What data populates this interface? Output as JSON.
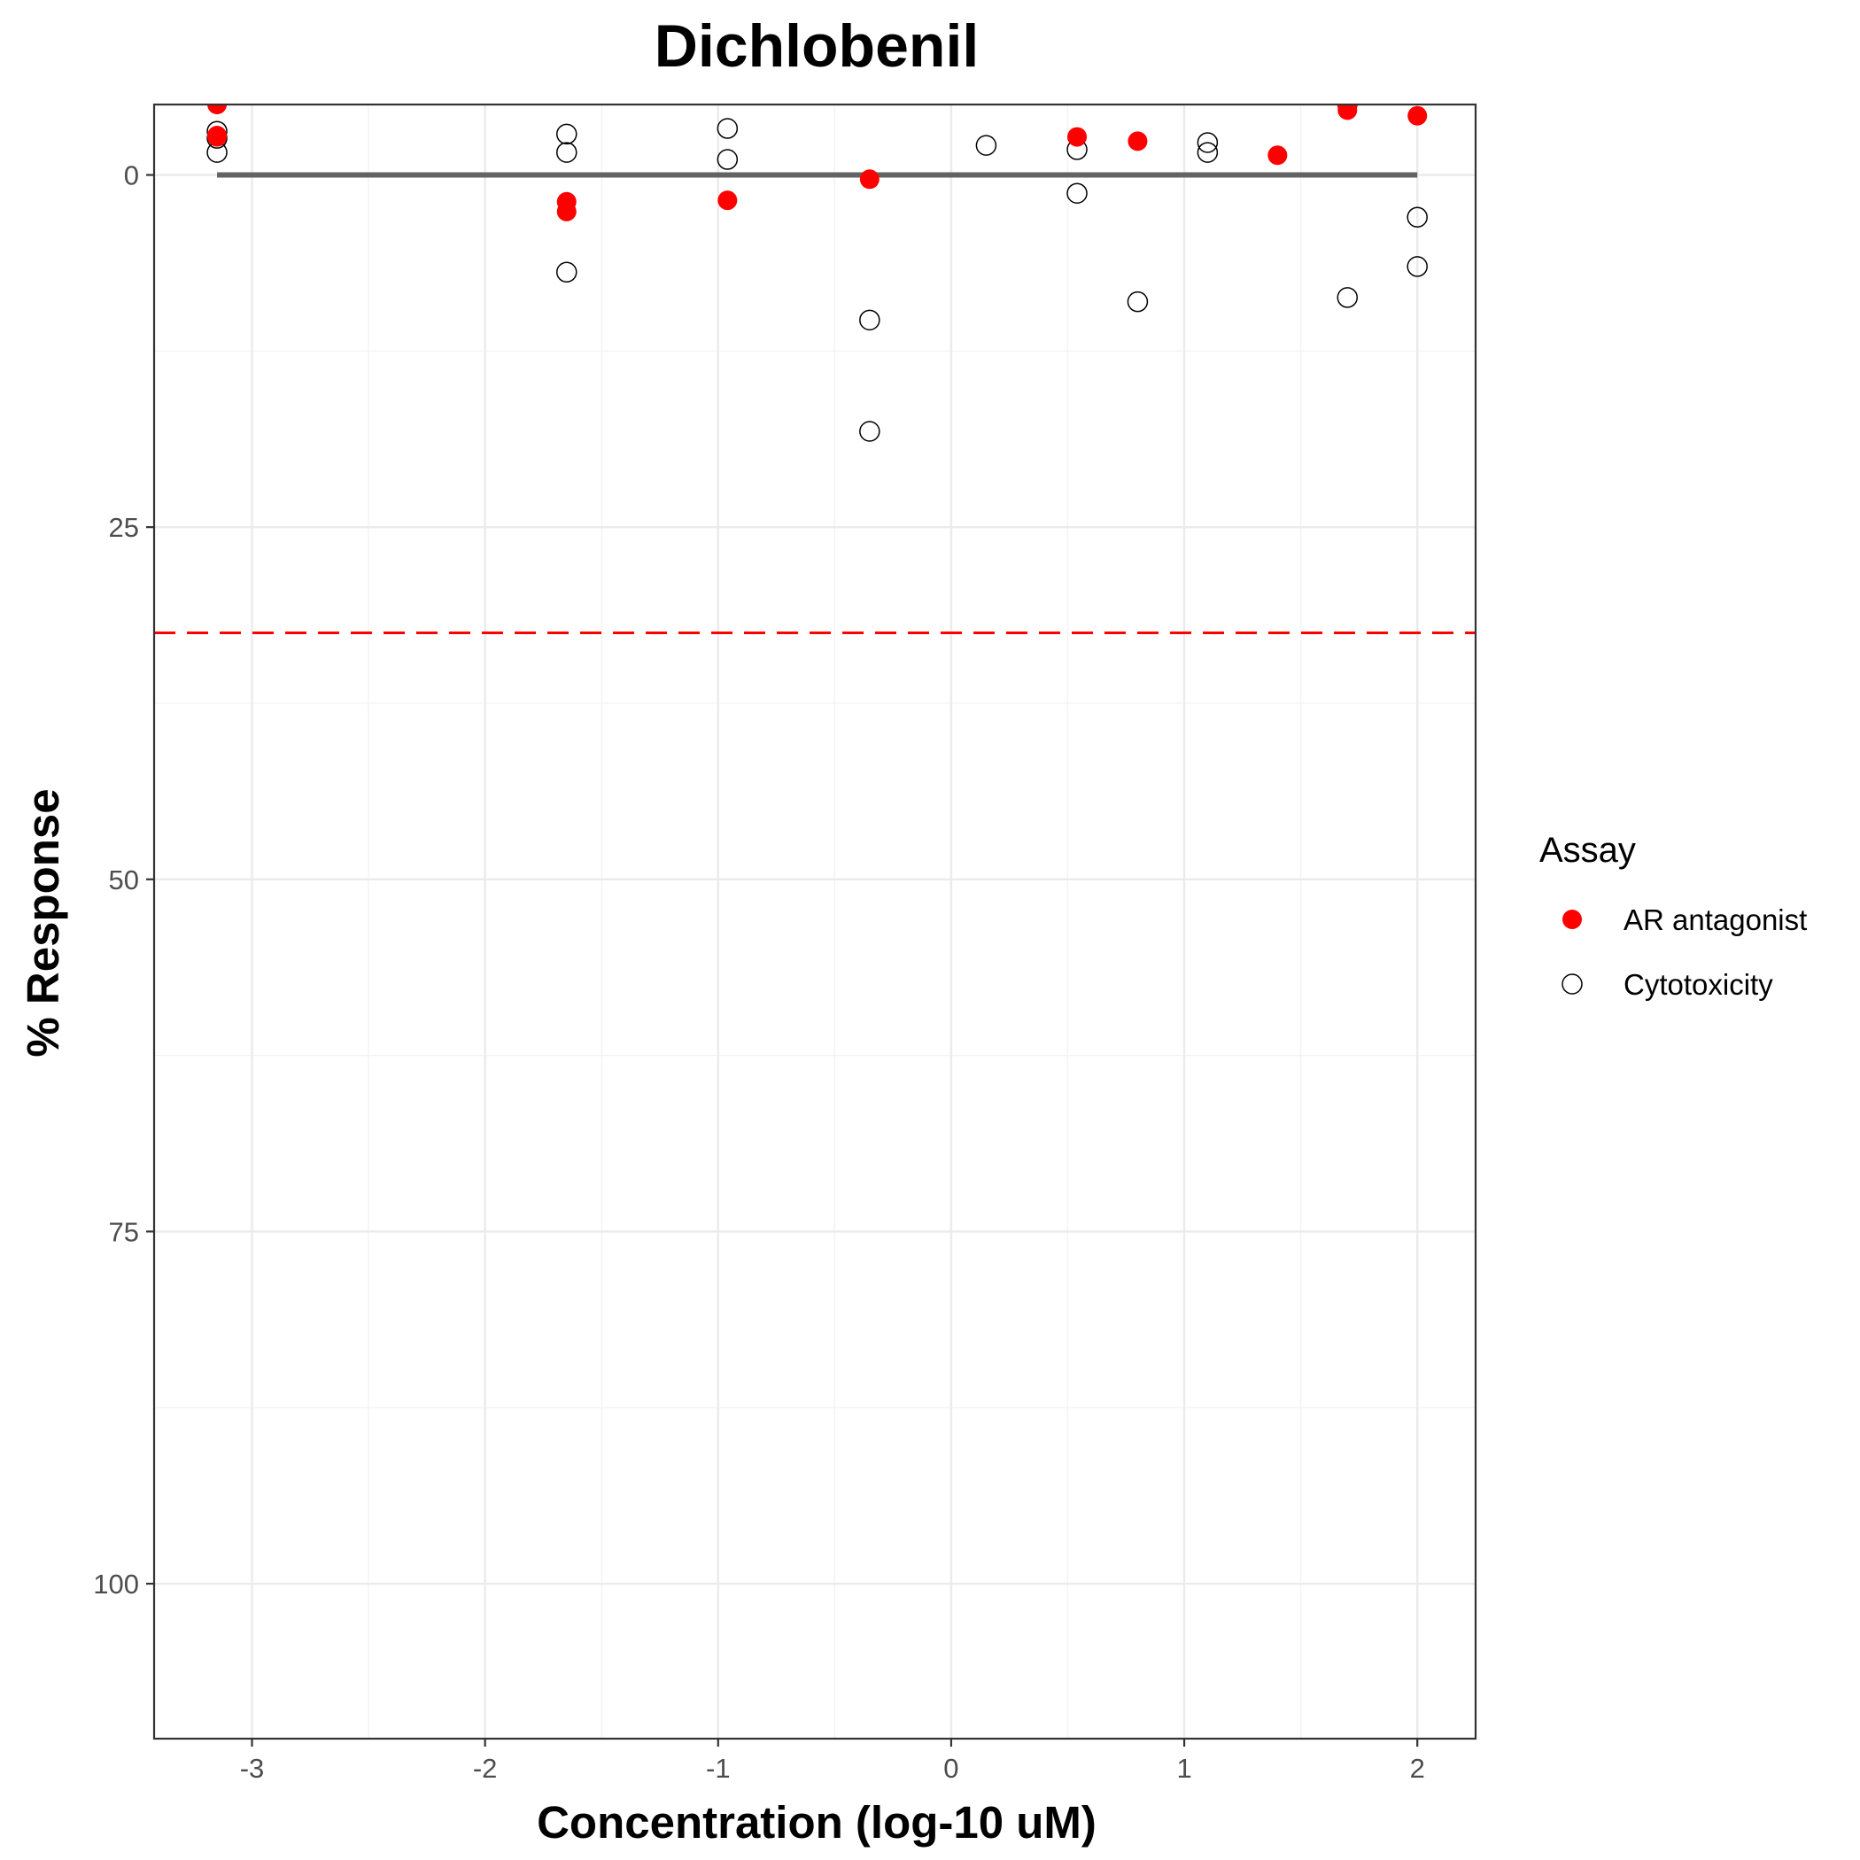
{
  "chart_data": {
    "type": "scatter",
    "title": "Dichlobenil",
    "xlabel": "Concentration (log-10 uM)",
    "ylabel": "% Response",
    "xlim": [
      -3.42,
      2.25
    ],
    "ylim": [
      -5,
      111
    ],
    "y_reversed": true,
    "x_ticks": [
      -3,
      -2,
      -1,
      0,
      1,
      2
    ],
    "x_tick_labels": [
      "-3",
      "-2",
      "-1",
      "0",
      "1",
      "2"
    ],
    "y_ticks": [
      0,
      25,
      50,
      75,
      100
    ],
    "y_tick_labels": [
      "0",
      "25",
      "50",
      "75",
      "100"
    ],
    "grid": true,
    "legend": {
      "title": "Assay",
      "placement": "right"
    },
    "series": [
      {
        "name": "AR antagonist",
        "marker": "filled-circle",
        "color": "#ff0000",
        "points": [
          [
            -3.15,
            -5.0
          ],
          [
            -3.15,
            -2.7
          ],
          [
            -3.15,
            -2.8
          ],
          [
            -1.65,
            1.9
          ],
          [
            -1.65,
            2.6
          ],
          [
            -0.96,
            1.8
          ],
          [
            -0.35,
            0.3
          ],
          [
            0.54,
            -2.7
          ],
          [
            0.8,
            -2.4
          ],
          [
            1.4,
            -5.8
          ],
          [
            1.4,
            -1.4
          ],
          [
            1.7,
            -4.6
          ],
          [
            1.7,
            -4.9
          ],
          [
            2.0,
            -4.2
          ]
        ]
      },
      {
        "name": "Cytotoxicity",
        "marker": "open-circle",
        "color": "#000000",
        "points": [
          [
            -3.15,
            -3.1
          ],
          [
            -3.15,
            -2.6
          ],
          [
            -3.15,
            -1.6
          ],
          [
            -1.65,
            -2.9
          ],
          [
            -1.65,
            -1.6
          ],
          [
            -1.65,
            6.9
          ],
          [
            -0.96,
            -3.3
          ],
          [
            -0.96,
            -1.1
          ],
          [
            -0.35,
            10.3
          ],
          [
            -0.35,
            18.2
          ],
          [
            0.15,
            -5.8
          ],
          [
            0.15,
            -2.1
          ],
          [
            0.54,
            -1.8
          ],
          [
            0.54,
            1.3
          ],
          [
            0.8,
            9.0
          ],
          [
            1.1,
            -2.3
          ],
          [
            1.1,
            -1.6
          ],
          [
            1.7,
            -5.1
          ],
          [
            1.7,
            8.7
          ],
          [
            2.0,
            3.0
          ],
          [
            2.0,
            6.5
          ]
        ]
      }
    ],
    "fit_line": {
      "color": "#636363",
      "x": [
        -3.15,
        2.0
      ],
      "y": [
        0,
        0
      ]
    },
    "reference_line": {
      "color": "#ff0000",
      "style": "dashed",
      "y": 32.5
    }
  }
}
